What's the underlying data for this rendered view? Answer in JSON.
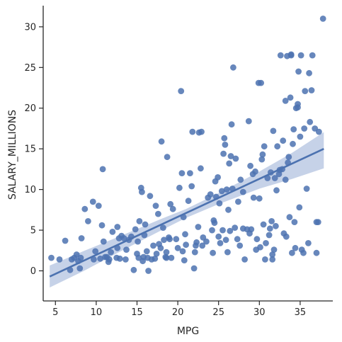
{
  "chart_data": {
    "type": "scatter",
    "xlabel": "MPG",
    "ylabel": "SALARY_MILLIONS",
    "xlim": [
      3.5,
      39
    ],
    "ylim": [
      -3.7,
      32.6
    ],
    "xticks": [
      5,
      10,
      15,
      20,
      25,
      30,
      35
    ],
    "yticks": [
      0,
      5,
      10,
      15,
      20,
      25,
      30
    ],
    "grid": false,
    "point_color": "#4c72b0",
    "line_color": "#4c72b0",
    "ci_color": "#c6d2e8",
    "points": [
      [
        4.5,
        1.6
      ],
      [
        5.5,
        1.4
      ],
      [
        6.2,
        3.7
      ],
      [
        6.8,
        0.1
      ],
      [
        7.0,
        1.4
      ],
      [
        7.3,
        1.6
      ],
      [
        7.6,
        2.0
      ],
      [
        7.8,
        1.2
      ],
      [
        8.0,
        0.3
      ],
      [
        8.1,
        1.6
      ],
      [
        8.2,
        4.0
      ],
      [
        8.6,
        7.6
      ],
      [
        9.0,
        6.1
      ],
      [
        9.6,
        8.5
      ],
      [
        9.7,
        1.4
      ],
      [
        9.9,
        2.4
      ],
      [
        10.3,
        8.0
      ],
      [
        10.5,
        1.5
      ],
      [
        10.7,
        5.6
      ],
      [
        10.8,
        12.5
      ],
      [
        10.9,
        3.6
      ],
      [
        11.1,
        1.7
      ],
      [
        11.3,
        1.7
      ],
      [
        11.5,
        1.1
      ],
      [
        11.6,
        1.4
      ],
      [
        11.8,
        2.3
      ],
      [
        12.0,
        4.8
      ],
      [
        12.5,
        1.6
      ],
      [
        12.6,
        2.8
      ],
      [
        12.6,
        5.4
      ],
      [
        12.8,
        4.0
      ],
      [
        12.9,
        1.5
      ],
      [
        13.1,
        4.3
      ],
      [
        13.4,
        4.0
      ],
      [
        13.6,
        1.4
      ],
      [
        13.7,
        2.6
      ],
      [
        14.0,
        3.8
      ],
      [
        14.3,
        4.2
      ],
      [
        14.6,
        0.1
      ],
      [
        14.8,
        5.1
      ],
      [
        15.0,
        2.1
      ],
      [
        15.1,
        3.6
      ],
      [
        15.2,
        1.6
      ],
      [
        15.3,
        6.1
      ],
      [
        15.5,
        10.2
      ],
      [
        15.6,
        9.7
      ],
      [
        15.7,
        1.2
      ],
      [
        15.8,
        1.7
      ],
      [
        15.9,
        4.4
      ],
      [
        16.0,
        5.7
      ],
      [
        16.2,
        2.4
      ],
      [
        16.3,
        1.6
      ],
      [
        16.4,
        0.0
      ],
      [
        16.6,
        9.2
      ],
      [
        16.8,
        1.4
      ],
      [
        17.0,
        3.1
      ],
      [
        17.2,
        1.5
      ],
      [
        17.3,
        8.0
      ],
      [
        17.4,
        2.1
      ],
      [
        17.6,
        7.0
      ],
      [
        17.7,
        3.3
      ],
      [
        17.9,
        2.8
      ],
      [
        18.0,
        15.9
      ],
      [
        18.2,
        5.3
      ],
      [
        18.3,
        3.8
      ],
      [
        18.5,
        1.7
      ],
      [
        18.6,
        2.3
      ],
      [
        18.6,
        1.6
      ],
      [
        18.7,
        14.0
      ],
      [
        18.9,
        4.1
      ],
      [
        19.0,
        3.9
      ],
      [
        19.1,
        8.2
      ],
      [
        19.2,
        1.6
      ],
      [
        19.4,
        7.6
      ],
      [
        19.8,
        3.9
      ],
      [
        20.0,
        2.8
      ],
      [
        20.2,
        10.2
      ],
      [
        20.4,
        22.1
      ],
      [
        20.5,
        12.0
      ],
      [
        20.6,
        2.4
      ],
      [
        20.7,
        6.6
      ],
      [
        20.8,
        1.3
      ],
      [
        20.9,
        4.5
      ],
      [
        21.0,
        3.2
      ],
      [
        21.3,
        8.6
      ],
      [
        21.5,
        12.0
      ],
      [
        21.7,
        10.4
      ],
      [
        21.8,
        17.1
      ],
      [
        22.0,
        0.3
      ],
      [
        22.1,
        2.3
      ],
      [
        22.2,
        3.1
      ],
      [
        22.3,
        3.5
      ],
      [
        22.5,
        5.4
      ],
      [
        22.6,
        17.0
      ],
      [
        22.8,
        12.6
      ],
      [
        22.9,
        17.1
      ],
      [
        23.0,
        3.1
      ],
      [
        23.1,
        4.1
      ],
      [
        23.5,
        3.6
      ],
      [
        23.7,
        9.0
      ],
      [
        24.0,
        9.4
      ],
      [
        24.2,
        5.0
      ],
      [
        24.3,
        2.2
      ],
      [
        24.4,
        6.2
      ],
      [
        24.5,
        5.9
      ],
      [
        24.6,
        11.0
      ],
      [
        24.7,
        9.1
      ],
      [
        24.9,
        11.5
      ],
      [
        25.0,
        4.2
      ],
      [
        25.1,
        8.3
      ],
      [
        25.2,
        3.4
      ],
      [
        25.4,
        9.8
      ],
      [
        25.5,
        5.0
      ],
      [
        25.6,
        14.4
      ],
      [
        25.7,
        16.3
      ],
      [
        25.8,
        15.5
      ],
      [
        25.9,
        3.8
      ],
      [
        26.0,
        10.0
      ],
      [
        26.1,
        2.3
      ],
      [
        26.2,
        7.5
      ],
      [
        26.3,
        13.2
      ],
      [
        26.4,
        4.9
      ],
      [
        26.5,
        14.1
      ],
      [
        26.6,
        18.0
      ],
      [
        26.7,
        10.1
      ],
      [
        26.8,
        25.0
      ],
      [
        27.0,
        5.3
      ],
      [
        27.1,
        13.8
      ],
      [
        27.3,
        3.9
      ],
      [
        27.4,
        8.5
      ],
      [
        27.6,
        3.1
      ],
      [
        27.7,
        11.2
      ],
      [
        28.0,
        9.7
      ],
      [
        28.0,
        5.2
      ],
      [
        28.2,
        1.4
      ],
      [
        28.5,
        5.1
      ],
      [
        28.7,
        18.4
      ],
      [
        28.8,
        4.6
      ],
      [
        28.9,
        12.9
      ],
      [
        29.0,
        5.1
      ],
      [
        29.2,
        11.9
      ],
      [
        29.3,
        9.0
      ],
      [
        29.5,
        12.2
      ],
      [
        29.6,
        2.6
      ],
      [
        29.7,
        3.9
      ],
      [
        29.9,
        23.1
      ],
      [
        30.0,
        8.9
      ],
      [
        30.1,
        2.9
      ],
      [
        30.2,
        23.1
      ],
      [
        30.3,
        13.7
      ],
      [
        30.4,
        14.3
      ],
      [
        30.5,
        5.7
      ],
      [
        30.6,
        15.3
      ],
      [
        30.7,
        1.4
      ],
      [
        30.8,
        3.4
      ],
      [
        31.0,
        11.4
      ],
      [
        31.2,
        4.4
      ],
      [
        31.3,
        5.2
      ],
      [
        31.4,
        12.1
      ],
      [
        31.5,
        6.1
      ],
      [
        31.6,
        2.0
      ],
      [
        31.6,
        1.4
      ],
      [
        31.7,
        17.2
      ],
      [
        31.8,
        2.6
      ],
      [
        31.9,
        11.4
      ],
      [
        32.0,
        5.5
      ],
      [
        32.1,
        9.9
      ],
      [
        32.2,
        15.3
      ],
      [
        32.4,
        11.9
      ],
      [
        32.5,
        12.4
      ],
      [
        32.6,
        26.5
      ],
      [
        32.8,
        12.5
      ],
      [
        32.9,
        16.0
      ],
      [
        33.0,
        4.6
      ],
      [
        33.2,
        20.9
      ],
      [
        33.2,
        11.2
      ],
      [
        33.3,
        4.2
      ],
      [
        33.4,
        26.4
      ],
      [
        33.5,
        13.3
      ],
      [
        33.6,
        14.0
      ],
      [
        33.7,
        6.6
      ],
      [
        33.8,
        21.3
      ],
      [
        33.9,
        26.5
      ],
      [
        33.9,
        26.6
      ],
      [
        34.0,
        2.2
      ],
      [
        34.1,
        15.6
      ],
      [
        34.2,
        17.4
      ],
      [
        34.3,
        6.0
      ],
      [
        34.4,
        2.8
      ],
      [
        34.5,
        20.0
      ],
      [
        34.7,
        20.5
      ],
      [
        34.7,
        20.1
      ],
      [
        34.8,
        24.5
      ],
      [
        34.9,
        7.8
      ],
      [
        35.0,
        16.5
      ],
      [
        35.1,
        26.5
      ],
      [
        35.2,
        2.6
      ],
      [
        35.4,
        2.2
      ],
      [
        35.5,
        17.5
      ],
      [
        35.6,
        22.1
      ],
      [
        35.8,
        10.1
      ],
      [
        36.0,
        3.4
      ],
      [
        36.1,
        24.3
      ],
      [
        36.2,
        18.3
      ],
      [
        36.4,
        22.2
      ],
      [
        36.5,
        26.5
      ],
      [
        36.8,
        17.5
      ],
      [
        37.0,
        6.0
      ],
      [
        37.0,
        2.2
      ],
      [
        37.2,
        6.0
      ],
      [
        37.3,
        17.1
      ],
      [
        37.8,
        31.0
      ]
    ],
    "regression": {
      "x": [
        4.3,
        37.9
      ],
      "y": [
        -0.7,
        15.0
      ]
    },
    "ci_band": [
      [
        4.3,
        -2.05,
        0.65
      ],
      [
        8.5,
        0.0,
        2.45
      ],
      [
        13,
        2.4,
        4.3
      ],
      [
        18,
        5.0,
        6.4
      ],
      [
        21,
        6.5,
        7.6
      ],
      [
        25,
        8.2,
        9.55
      ],
      [
        30,
        10.1,
        12.2
      ],
      [
        34,
        11.3,
        14.5
      ],
      [
        37.9,
        12.6,
        17.05
      ]
    ]
  }
}
